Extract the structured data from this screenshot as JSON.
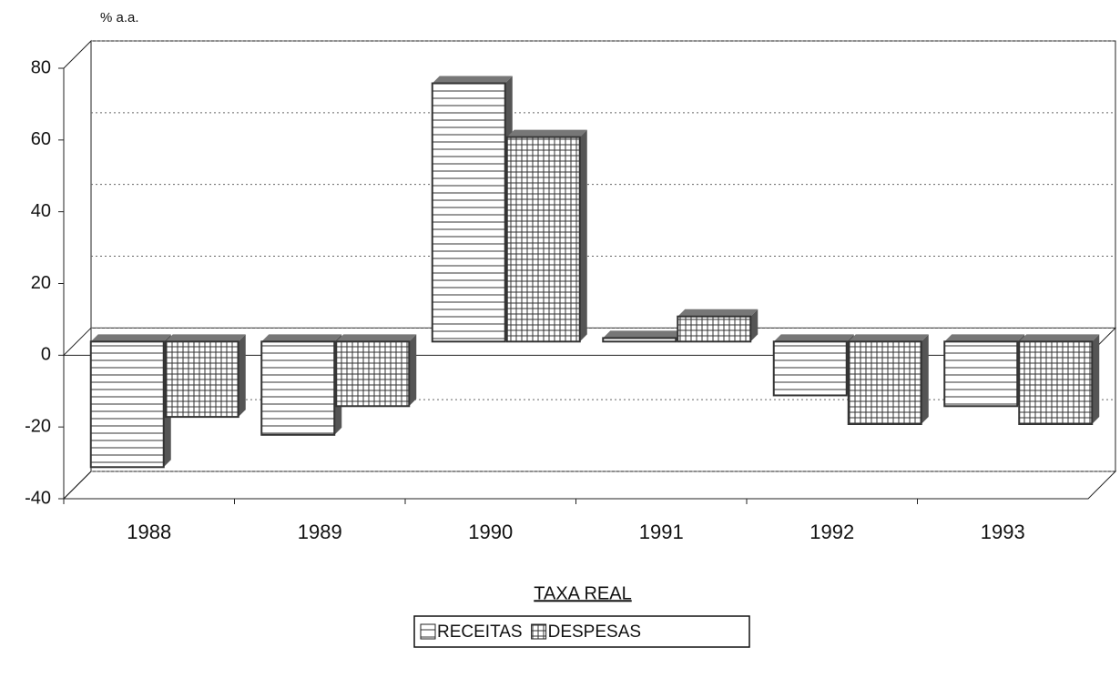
{
  "chart_data": {
    "type": "bar3d",
    "y_axis_label": "% a.a.",
    "x_axis_label": "TAXA REAL",
    "categories": [
      "1988",
      "1989",
      "1990",
      "1991",
      "1992",
      "1993"
    ],
    "series": [
      {
        "name": "RECEITAS",
        "color": "#333333",
        "values": [
          -35,
          -26,
          72,
          1,
          -15,
          -18
        ]
      },
      {
        "name": "DESPESAS",
        "color": "#333333",
        "values": [
          -21,
          -18,
          57,
          7,
          -23,
          -23
        ]
      }
    ],
    "ylim": [
      -40,
      80
    ],
    "yticks": [
      -40,
      -20,
      0,
      20,
      40,
      60,
      80
    ],
    "grid": true
  }
}
